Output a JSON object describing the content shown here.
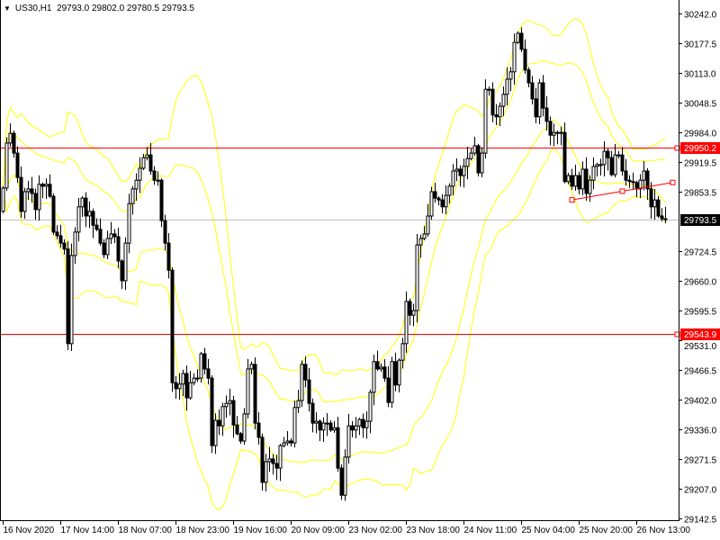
{
  "header": {
    "symbol": "US30,H1",
    "ohlc": "29793.0 29802.0 29780.5 29793.5",
    "menu_icon": "triangle-down-icon"
  },
  "colors": {
    "background": "#ffffff",
    "bull_body": "#ffffff",
    "bear_body": "#000000",
    "candle_outline": "#000000",
    "bands": "#ffff00",
    "level_line": "#ff0000",
    "bid_line": "#c0c0c0",
    "bid_label_bg": "#000000",
    "level_label_bg": "#ff0000"
  },
  "chart_data": {
    "type": "candlestick",
    "symbol": "US30",
    "timeframe": "H1",
    "ylim": [
      29142.5,
      30242.0
    ],
    "y_ticks": [
      "30242.0",
      "30177.5",
      "30113.0",
      "30048.5",
      "29984.0",
      "29919.5",
      "29853.5",
      "29724.5",
      "29660.0",
      "29595.5",
      "29531.0",
      "29466.5",
      "29402.0",
      "29336.0",
      "29271.5",
      "29207.0",
      "29142.5"
    ],
    "x_ticks": [
      "16 Nov 2020",
      "17 Nov 14:00",
      "18 Nov 07:00",
      "18 Nov 23:00",
      "19 Nov 16:00",
      "20 Nov 09:00",
      "23 Nov 02:00",
      "23 Nov 18:00",
      "24 Nov 11:00",
      "25 Nov 04:00",
      "25 Nov 20:00",
      "26 Nov 13:00"
    ],
    "first_open": 29811,
    "closes": [
      29862,
      29960,
      29981,
      29938,
      29885,
      29811,
      29854,
      29860,
      29850,
      29815,
      29870,
      29866,
      29870,
      29844,
      29766,
      29758,
      29742,
      29729,
      29523,
      29715,
      29766,
      29821,
      29840,
      29801,
      29811,
      29781,
      29772,
      29742,
      29717,
      29752,
      29762,
      29756,
      29703,
      29660,
      29742,
      29828,
      29860,
      29879,
      29905,
      29928,
      29934,
      29899,
      29879,
      29879,
      29791,
      29742,
      29683,
      29438,
      29425,
      29435,
      29458,
      29405,
      29438,
      29448,
      29448,
      29501,
      29468,
      29448,
      29301,
      29356,
      29344,
      29386,
      29393,
      29399,
      29346,
      29327,
      29311,
      29370,
      29468,
      29478,
      29350,
      29319,
      29221,
      29266,
      29272,
      29262,
      29252,
      29301,
      29307,
      29311,
      29307,
      29384,
      29399,
      29478,
      29444,
      29393,
      29350,
      29354,
      29335,
      29350,
      29350,
      29335,
      29340,
      29252,
      29193,
      29276,
      29344,
      29335,
      29344,
      29358,
      29340,
      29354,
      29417,
      29484,
      29468,
      29472,
      29448,
      29395,
      29484,
      29433,
      29487,
      29523,
      29615,
      29585,
      29595,
      29738,
      29752,
      29762,
      29801,
      29854,
      29840,
      29836,
      29821,
      29846,
      29866,
      29899,
      29903,
      29889,
      29909,
      29926,
      29938,
      29954,
      29895,
      29938,
      30077,
      30077,
      30021,
      30017,
      30040,
      30066,
      30099,
      30115,
      30179,
      30199,
      30164,
      30119,
      30091,
      30056,
      30017,
      30091,
      30036,
      30007,
      29977,
      29983,
      29983,
      29983,
      29876,
      29889,
      29866,
      29889,
      29860,
      29903,
      29850,
      29879,
      29909,
      29913,
      29913,
      29942,
      29928,
      29891,
      29934,
      29934,
      29899,
      29879,
      29876,
      29874,
      29860,
      29879,
      29899,
      29860,
      29821,
      29836,
      29801,
      29795,
      29793.5
    ],
    "horizontal_lines": [
      {
        "price": 29950.2,
        "label": "29950.2",
        "style": "red"
      },
      {
        "price": 29543.9,
        "label": "29543.9",
        "style": "red"
      },
      {
        "price": 29793.5,
        "label": "29793.5",
        "style": "bid"
      }
    ],
    "trendline": {
      "start": {
        "bar": 158,
        "price": 29836
      },
      "end": {
        "bar": 186,
        "price": 29874
      }
    },
    "indicators": [
      "bollinger-bands"
    ]
  }
}
